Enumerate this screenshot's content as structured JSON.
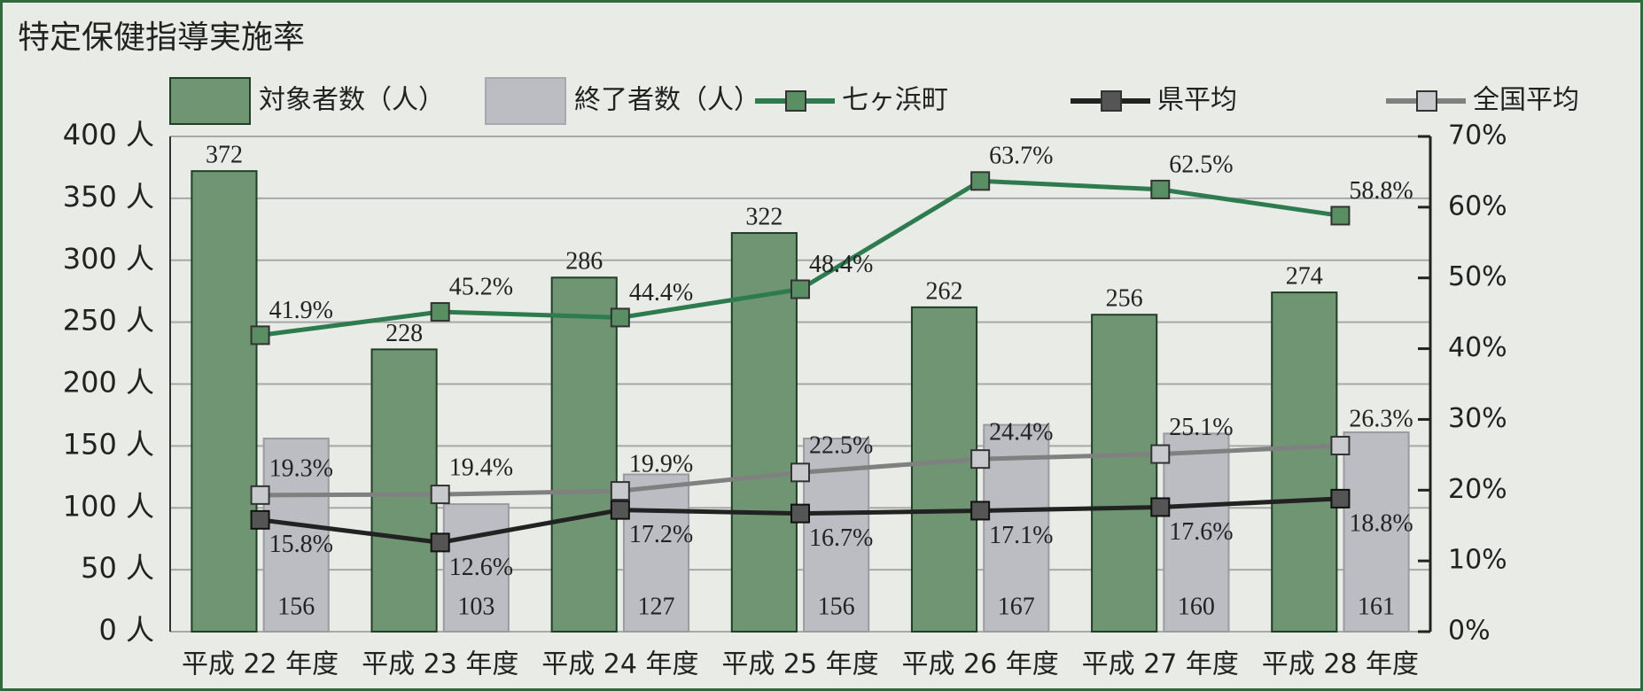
{
  "chart_data": {
    "type": "bar",
    "title": "特定保健指導実施率",
    "categories": [
      "平成 22 年度",
      "平成 23 年度",
      "平成 24 年度",
      "平成 25 年度",
      "平成 26 年度",
      "平成 27 年度",
      "平成 28 年度"
    ],
    "series": [
      {
        "name": "対象者数（人）",
        "type": "bar",
        "color": "#6f9572",
        "values": [
          372,
          228,
          286,
          322,
          262,
          256,
          274
        ]
      },
      {
        "name": "終了者数（人）",
        "type": "bar",
        "color": "#bcbdc3",
        "values": [
          156,
          103,
          127,
          156,
          167,
          160,
          161
        ]
      },
      {
        "name": "七ヶ浜町",
        "type": "line",
        "axis": "y2",
        "color": "#2e7b4f",
        "values": [
          41.9,
          45.2,
          44.4,
          48.4,
          63.7,
          62.5,
          58.8
        ],
        "value_labels": [
          "41.9%",
          "45.2%",
          "44.4%",
          "48.4%",
          "63.7%",
          "62.5%",
          "58.8%"
        ]
      },
      {
        "name": "県平均",
        "type": "line",
        "axis": "y2",
        "color": "#222222",
        "values": [
          15.8,
          12.6,
          17.2,
          16.7,
          17.1,
          17.6,
          18.8
        ],
        "value_labels": [
          "15.8%",
          "12.6%",
          "17.2%",
          "16.7%",
          "17.1%",
          "17.6%",
          "18.8%"
        ]
      },
      {
        "name": "全国平均",
        "type": "line",
        "axis": "y2",
        "color": "#808080",
        "values": [
          19.3,
          19.4,
          19.9,
          22.5,
          24.4,
          25.1,
          26.3
        ],
        "value_labels": [
          "19.3%",
          "19.4%",
          "19.9%",
          "22.5%",
          "24.4%",
          "25.1%",
          "26.3%"
        ]
      }
    ],
    "ylim": [
      0,
      400
    ],
    "yticks": [
      {
        "value": 0,
        "label": "0 人"
      },
      {
        "value": 50,
        "label": "50 人"
      },
      {
        "value": 100,
        "label": "100 人"
      },
      {
        "value": 150,
        "label": "150 人"
      },
      {
        "value": 200,
        "label": "200 人"
      },
      {
        "value": 250,
        "label": "250 人"
      },
      {
        "value": 300,
        "label": "300 人"
      },
      {
        "value": 350,
        "label": "350 人"
      },
      {
        "value": 400,
        "label": "400 人"
      }
    ],
    "y2lim": [
      0,
      70
    ],
    "y2ticks": [
      {
        "value": 0,
        "label": "0%"
      },
      {
        "value": 10,
        "label": "10%"
      },
      {
        "value": 20,
        "label": "20%"
      },
      {
        "value": 30,
        "label": "30%"
      },
      {
        "value": 40,
        "label": "40%"
      },
      {
        "value": 50,
        "label": "50%"
      },
      {
        "value": 60,
        "label": "60%"
      },
      {
        "value": 70,
        "label": "70%"
      }
    ],
    "grid": true
  }
}
